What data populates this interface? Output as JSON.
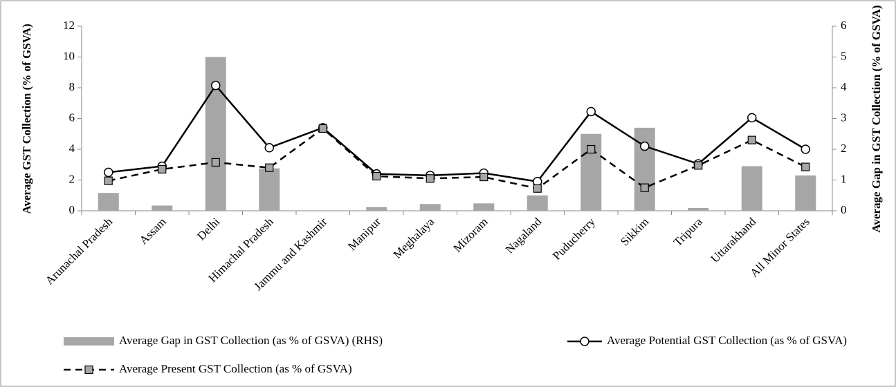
{
  "chart_data": {
    "type": "combo",
    "ylabel": "Average GST Collection (% of GSVA)",
    "y2label": "Average Gap in GST Collection (% of GSVA)",
    "categories": [
      "Arunachal Pradesh",
      "Assam",
      "Delhi",
      "Himachal Pradesh",
      "Jammu and Kashmir",
      "Manipur",
      "Meghalaya",
      "Mizoram",
      "Nagaland",
      "Puducherry",
      "Sikkim",
      "Tripura",
      "Uttarakhand",
      "All Minor States"
    ],
    "series": [
      {
        "name": "Average Gap in GST Collection (as % of GSVA) (RHS)",
        "type": "bar",
        "axis": "y2",
        "color": "#a6a6a6",
        "values": [
          0.58,
          0.17,
          5.0,
          1.38,
          0,
          0.12,
          0.22,
          0.24,
          0.5,
          2.5,
          2.7,
          0.09,
          1.45,
          1.15
        ]
      },
      {
        "name": "Average Potential GST Collection (as % of GSVA)",
        "type": "line",
        "color": "#000000",
        "marker": "circle",
        "dash": false,
        "values": [
          2.5,
          2.9,
          8.15,
          4.1,
          5.4,
          2.4,
          2.3,
          2.45,
          1.9,
          6.45,
          4.2,
          3.05,
          6.05,
          4.0
        ]
      },
      {
        "name": "Average Present GST Collection (as % of GSVA)",
        "type": "line",
        "color": "#000000",
        "marker": "square",
        "dash": true,
        "values": [
          1.95,
          2.7,
          3.15,
          2.8,
          5.35,
          2.25,
          2.1,
          2.2,
          1.45,
          4.0,
          1.5,
          2.95,
          4.6,
          2.85
        ]
      }
    ],
    "ylim": [
      0,
      12
    ],
    "yticks": [
      0,
      2,
      4,
      6,
      8,
      10,
      12
    ],
    "y2lim": [
      0,
      6
    ],
    "y2ticks": [
      0,
      1,
      2,
      3,
      4,
      5,
      6
    ],
    "grid": false
  }
}
